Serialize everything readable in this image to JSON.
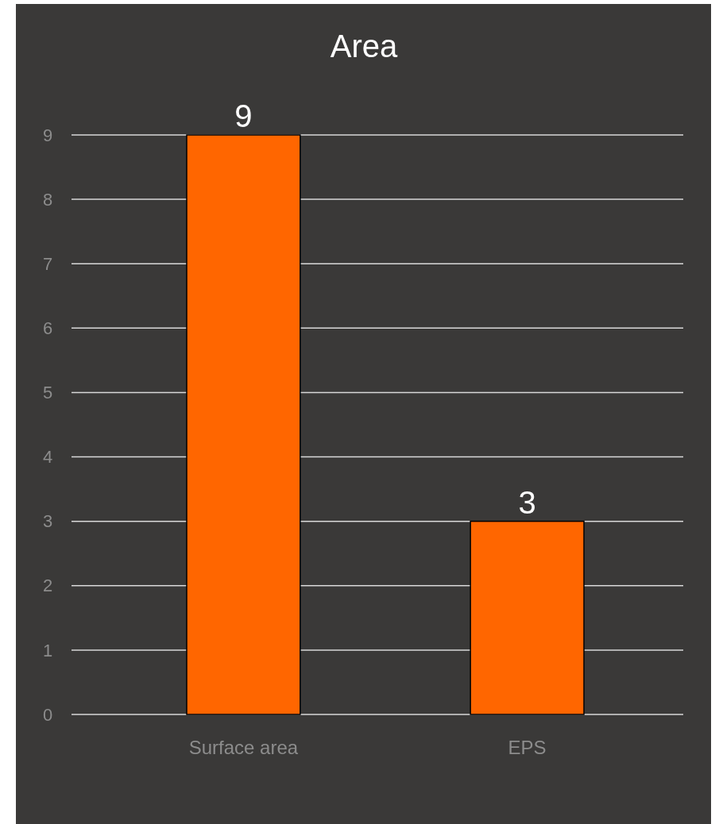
{
  "chart_data": {
    "type": "bar",
    "title": "Area",
    "categories": [
      "Surface area",
      "EPS"
    ],
    "values": [
      9,
      3
    ],
    "color": "#ff6600",
    "ylim": [
      0,
      9
    ],
    "yticks": [
      0,
      1,
      2,
      3,
      4,
      5,
      6,
      7,
      8,
      9
    ],
    "grid": "y",
    "data_labels": true
  }
}
